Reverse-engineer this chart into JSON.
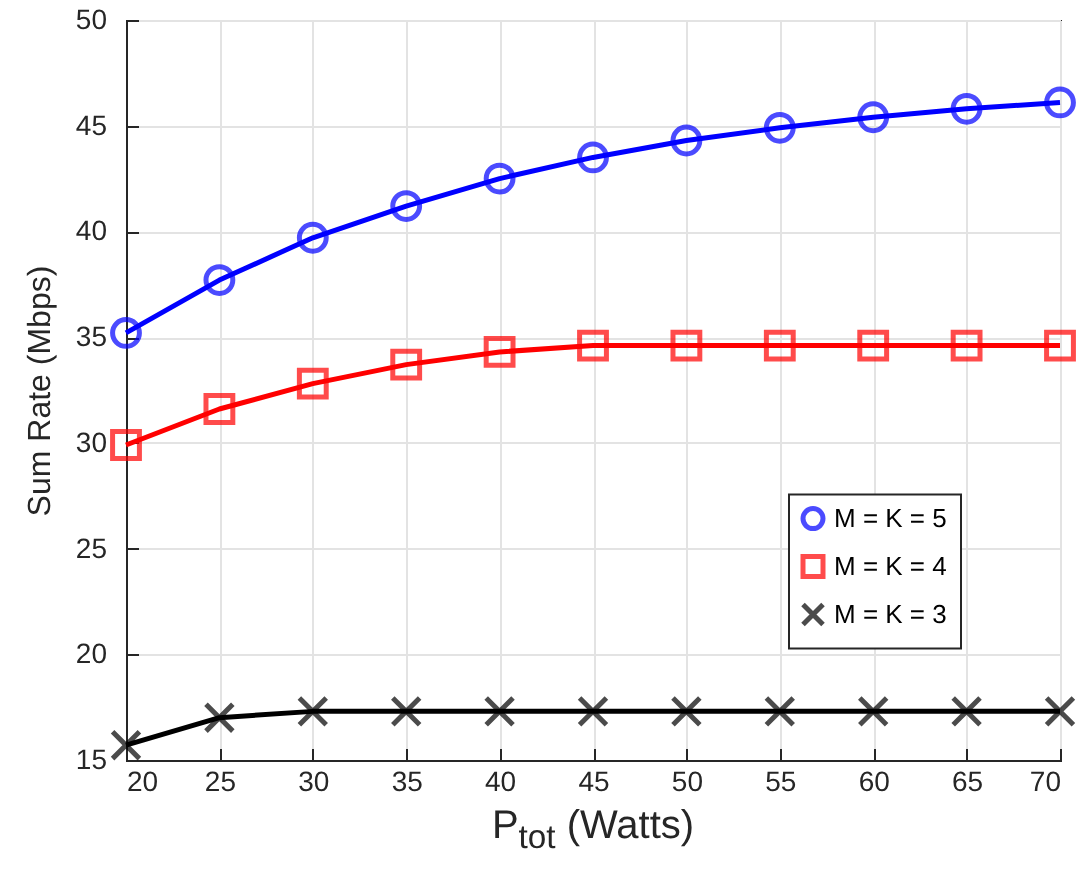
{
  "chart_data": {
    "type": "line",
    "xlabel": "P$_{tot}$ (Watts)",
    "ylabel": "Sum Rate (Mbps)",
    "x": [
      20,
      25,
      30,
      35,
      40,
      45,
      50,
      55,
      60,
      65,
      70
    ],
    "series": [
      {
        "name": "M = K = 5",
        "color": "#0000ff",
        "marker": "circle",
        "values": [
          35.2,
          37.7,
          39.7,
          41.2,
          42.5,
          43.5,
          44.3,
          44.9,
          45.4,
          45.8,
          46.1
        ]
      },
      {
        "name": "M = K = 4",
        "color": "#ff0000",
        "marker": "square",
        "values": [
          29.9,
          31.6,
          32.8,
          33.7,
          34.3,
          34.6,
          34.6,
          34.6,
          34.6,
          34.6,
          34.6
        ]
      },
      {
        "name": "M = K = 3",
        "color": "#000000",
        "marker": "cross",
        "values": [
          15.7,
          17.0,
          17.3,
          17.3,
          17.3,
          17.3,
          17.3,
          17.3,
          17.3,
          17.3,
          17.3
        ]
      }
    ],
    "xlim": [
      20,
      70
    ],
    "xticks": [
      20,
      25,
      30,
      35,
      40,
      45,
      50,
      55,
      60,
      65,
      70
    ],
    "ylim": [
      15,
      50
    ],
    "yticks": [
      15,
      20,
      25,
      30,
      35,
      40,
      45,
      50
    ],
    "grid": true,
    "legend": "right",
    "line_style": "solid"
  }
}
